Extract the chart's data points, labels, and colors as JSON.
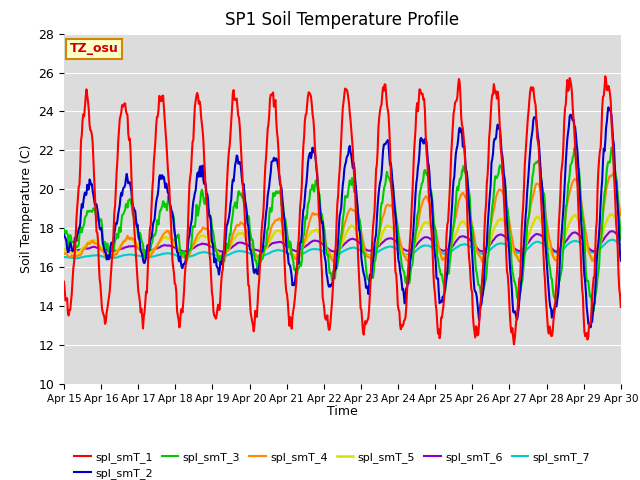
{
  "title": "SP1 Soil Temperature Profile",
  "xlabel": "Time",
  "ylabel": "Soil Temperature (C)",
  "ylim": [
    10,
    28
  ],
  "xtick_labels": [
    "Apr 15",
    "Apr 16",
    "Apr 17",
    "Apr 18",
    "Apr 19",
    "Apr 20",
    "Apr 21",
    "Apr 22",
    "Apr 23",
    "Apr 24",
    "Apr 25",
    "Apr 26",
    "Apr 27",
    "Apr 28",
    "Apr 29",
    "Apr 30"
  ],
  "series_colors": {
    "spl_smT_1": "#FF0000",
    "spl_smT_2": "#0000CC",
    "spl_smT_3": "#00CC00",
    "spl_smT_4": "#FF8800",
    "spl_smT_5": "#DDDD00",
    "spl_smT_6": "#8800CC",
    "spl_smT_7": "#00CCCC"
  },
  "bg_color": "#DCDCDC",
  "grid_color": "#FFFFFF",
  "annotation_text": "TZ_osu",
  "annotation_color": "#CC0000",
  "annotation_bg": "#FFFFCC",
  "annotation_border": "#CC8800",
  "fig_bg": "#FFFFFF"
}
